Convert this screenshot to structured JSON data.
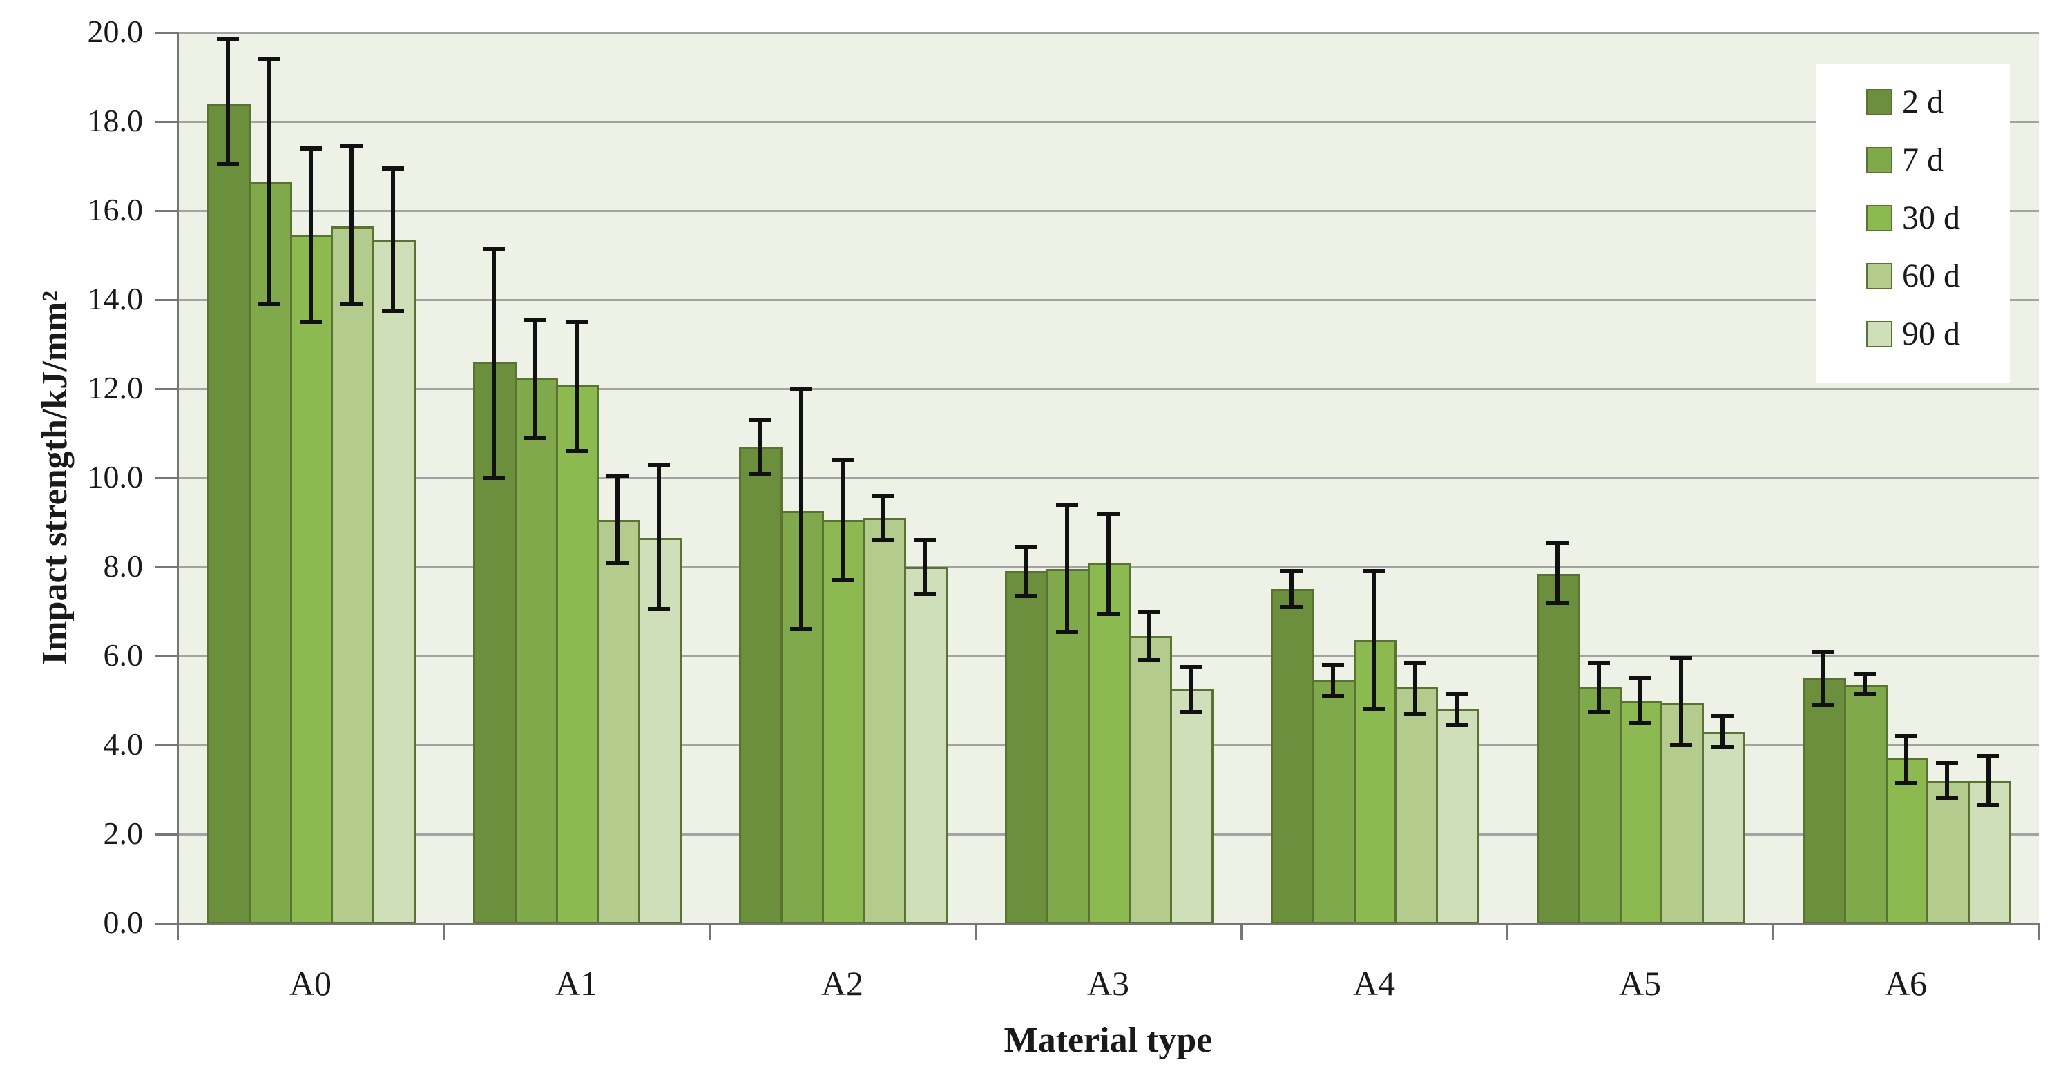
{
  "figure": {
    "ylabel": "Impact strength/kJ/mm²",
    "xlabel": "Material type"
  },
  "legend": {
    "items": [
      "2 d",
      "7 d",
      "30 d",
      "60 d",
      "90 d"
    ]
  },
  "chart_data": {
    "type": "bar",
    "title": "",
    "xlabel": "Material type",
    "ylabel": "Impact strength/kJ/mm²",
    "categories": [
      "A0",
      "A1",
      "A2",
      "A3",
      "A4",
      "A5",
      "A6"
    ],
    "ylim": [
      0,
      20
    ],
    "ytick_step": 2,
    "ytick_labels": [
      "0.0",
      "2.0",
      "4.0",
      "6.0",
      "8.0",
      "10.0",
      "12.0",
      "14.0",
      "16.0",
      "18.0",
      "20.0"
    ],
    "grid": true,
    "legend_position": "top-right",
    "style": {
      "plot_bg": "#edf1e6",
      "gridline_color": "#a3a3a3",
      "axis_color": "#767676",
      "bar_border_color": "#5a7333",
      "error_bar_color": "#111111"
    },
    "series": [
      {
        "name": "2 d",
        "color": "#6b8f3d",
        "values": [
          18.4,
          12.6,
          10.7,
          7.9,
          7.5,
          7.85,
          5.5
        ],
        "err_low": [
          17.05,
          10.0,
          10.1,
          7.35,
          7.1,
          7.2,
          4.9
        ],
        "err_high": [
          19.85,
          15.15,
          11.3,
          8.45,
          7.9,
          8.55,
          6.1
        ]
      },
      {
        "name": "7 d",
        "color": "#7fa94a",
        "values": [
          16.65,
          12.25,
          9.25,
          7.95,
          5.45,
          5.3,
          5.35
        ],
        "err_low": [
          13.9,
          10.9,
          6.6,
          6.55,
          5.1,
          4.75,
          5.15
        ],
        "err_high": [
          19.4,
          13.55,
          12.0,
          9.4,
          5.8,
          5.85,
          5.6
        ]
      },
      {
        "name": "30 d",
        "color": "#8cba51",
        "values": [
          15.45,
          12.1,
          9.05,
          8.1,
          6.35,
          5.0,
          3.7
        ],
        "err_low": [
          13.5,
          10.6,
          7.7,
          6.95,
          4.8,
          4.5,
          3.15
        ],
        "err_high": [
          17.4,
          13.5,
          10.4,
          9.2,
          7.9,
          5.5,
          4.2
        ]
      },
      {
        "name": "60 d",
        "color": "#b3cc8e",
        "values": [
          15.65,
          9.05,
          9.1,
          6.45,
          5.3,
          4.95,
          3.2
        ],
        "err_low": [
          13.9,
          8.1,
          8.6,
          5.9,
          4.7,
          4.0,
          2.8
        ],
        "err_high": [
          17.45,
          10.05,
          9.6,
          7.0,
          5.85,
          5.95,
          3.6
        ]
      },
      {
        "name": "90 d",
        "color": "#cfdfba",
        "values": [
          15.35,
          8.65,
          8.0,
          5.25,
          4.8,
          4.3,
          3.2
        ],
        "err_low": [
          13.75,
          7.05,
          7.4,
          4.75,
          4.45,
          3.95,
          2.65
        ],
        "err_high": [
          16.95,
          10.3,
          8.6,
          5.75,
          5.15,
          4.65,
          3.75
        ]
      }
    ]
  }
}
